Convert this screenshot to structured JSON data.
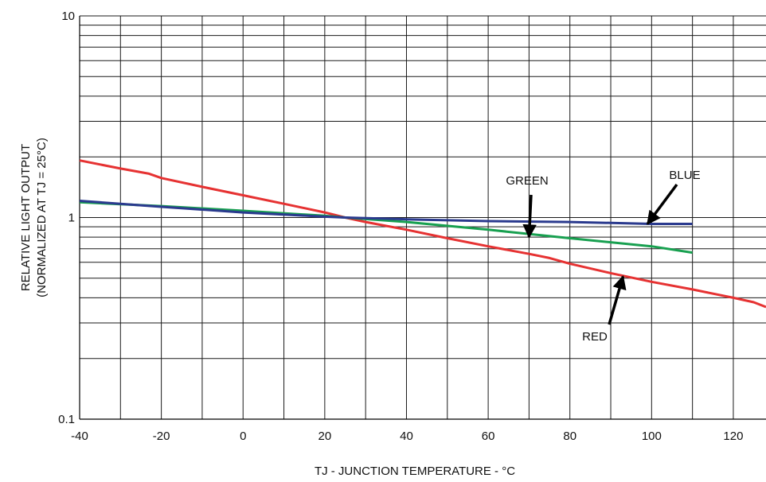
{
  "chart_data": {
    "type": "line",
    "xlabel": "TJ - JUNCTION TEMPERATURE - °C",
    "ylabel_line1": "RELATIVE LIGHT OUTPUT",
    "ylabel_line2": "(NORMALIZED AT TJ = 25°C)",
    "xlim": [
      -40,
      128
    ],
    "ylim": [
      0.1,
      10
    ],
    "yscale": "log",
    "grid": true,
    "x_ticks": [
      -40,
      -20,
      0,
      20,
      40,
      60,
      80,
      100,
      120
    ],
    "x_tick_labels": [
      "-40",
      "-20",
      "0",
      "20",
      "40",
      "60",
      "80",
      "100",
      "120"
    ],
    "y_ticks": [
      0.1,
      1,
      10
    ],
    "y_tick_labels": [
      "0.1",
      "1",
      "10"
    ],
    "series": [
      {
        "name": "RED",
        "color": "#e63232",
        "x": [
          -40,
          -30,
          -23,
          -20,
          -10,
          0,
          10,
          20,
          25,
          30,
          40,
          50,
          60,
          70,
          75,
          80,
          90,
          100,
          110,
          120,
          125,
          128
        ],
        "y": [
          1.92,
          1.75,
          1.65,
          1.57,
          1.42,
          1.29,
          1.17,
          1.06,
          1.0,
          0.95,
          0.87,
          0.79,
          0.72,
          0.66,
          0.63,
          0.59,
          0.53,
          0.48,
          0.44,
          0.4,
          0.38,
          0.36
        ]
      },
      {
        "name": "GREEN",
        "color": "#18a050",
        "x": [
          -40,
          -20,
          0,
          20,
          25,
          40,
          60,
          80,
          100,
          110
        ],
        "y": [
          1.19,
          1.14,
          1.08,
          1.02,
          1.0,
          0.95,
          0.87,
          0.79,
          0.72,
          0.67
        ]
      },
      {
        "name": "BLUE",
        "color": "#2a3a8e",
        "x": [
          -40,
          -20,
          0,
          20,
          25,
          40,
          60,
          80,
          100,
          110
        ],
        "y": [
          1.21,
          1.13,
          1.06,
          1.01,
          1.0,
          0.98,
          0.96,
          0.95,
          0.93,
          0.93
        ]
      }
    ],
    "annotations": [
      {
        "text": "GREEN",
        "target_x": 70,
        "target_y": 0.8
      },
      {
        "text": "BLUE",
        "target_x": 99,
        "target_y": 0.93
      },
      {
        "text": "RED",
        "target_x": 93,
        "target_y": 0.51
      }
    ]
  }
}
